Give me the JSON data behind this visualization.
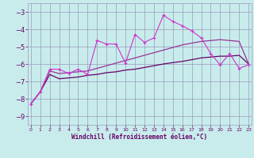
{
  "xlabel": "Windchill (Refroidissement éolien,°C)",
  "xlim": [
    -0.3,
    23.3
  ],
  "ylim": [
    -9.5,
    -2.5
  ],
  "yticks": [
    -9,
    -8,
    -7,
    -6,
    -5,
    -4,
    -3
  ],
  "xticks": [
    0,
    1,
    2,
    3,
    4,
    5,
    6,
    7,
    8,
    9,
    10,
    11,
    12,
    13,
    14,
    15,
    16,
    17,
    18,
    19,
    20,
    21,
    22,
    23
  ],
  "bg_color": "#c8ecec",
  "grid_color": "#9999bb",
  "line_color_jagged": "#cc33cc",
  "line_color_upper_smooth": "#993399",
  "line_color_lower_smooth": "#660066",
  "x": [
    0,
    1,
    2,
    3,
    4,
    5,
    6,
    7,
    8,
    9,
    10,
    11,
    12,
    13,
    14,
    15,
    16,
    17,
    18,
    19,
    20,
    21,
    22,
    23
  ],
  "y_jagged": [
    -8.3,
    -7.6,
    -6.3,
    -6.3,
    -6.55,
    -6.3,
    -6.6,
    -4.65,
    -4.85,
    -4.85,
    -5.95,
    -4.3,
    -4.75,
    -4.5,
    -3.2,
    -3.55,
    -3.8,
    -4.1,
    -4.5,
    -5.4,
    -6.05,
    -5.4,
    -6.25,
    -6.05
  ],
  "y_upper_smooth": [
    -8.3,
    -7.6,
    -6.4,
    -6.55,
    -6.5,
    -6.45,
    -6.4,
    -6.25,
    -6.1,
    -5.95,
    -5.8,
    -5.65,
    -5.5,
    -5.35,
    -5.2,
    -5.05,
    -4.9,
    -4.8,
    -4.7,
    -4.65,
    -4.6,
    -4.65,
    -4.7,
    -6.0
  ],
  "y_lower_smooth": [
    -8.3,
    -7.6,
    -6.6,
    -6.85,
    -6.8,
    -6.75,
    -6.65,
    -6.6,
    -6.5,
    -6.45,
    -6.35,
    -6.3,
    -6.2,
    -6.1,
    -6.0,
    -5.92,
    -5.85,
    -5.75,
    -5.65,
    -5.6,
    -5.55,
    -5.55,
    -5.5,
    -6.0
  ]
}
